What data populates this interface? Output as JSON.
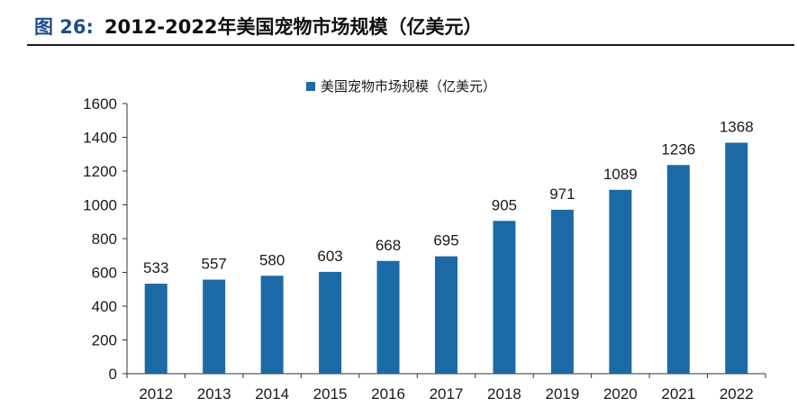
{
  "figure": {
    "label": "图 26:",
    "title": "2012-2022年美国宠物市场规模（亿美元）"
  },
  "chart_data": {
    "type": "bar",
    "categories": [
      "2012",
      "2013",
      "2014",
      "2015",
      "2016",
      "2017",
      "2018",
      "2019",
      "2020",
      "2021",
      "2022"
    ],
    "series": [
      {
        "name": "美国宠物市场规模（亿美元）",
        "values": [
          533,
          557,
          580,
          603,
          668,
          695,
          905,
          971,
          1089,
          1236,
          1368
        ],
        "color": "#1b6aa5"
      }
    ],
    "ylim": [
      0,
      1600
    ],
    "yticks": [
      0,
      200,
      400,
      600,
      800,
      1000,
      1200,
      1400,
      1600
    ],
    "grid": false,
    "legend_position": "top-center",
    "data_labels": true
  }
}
